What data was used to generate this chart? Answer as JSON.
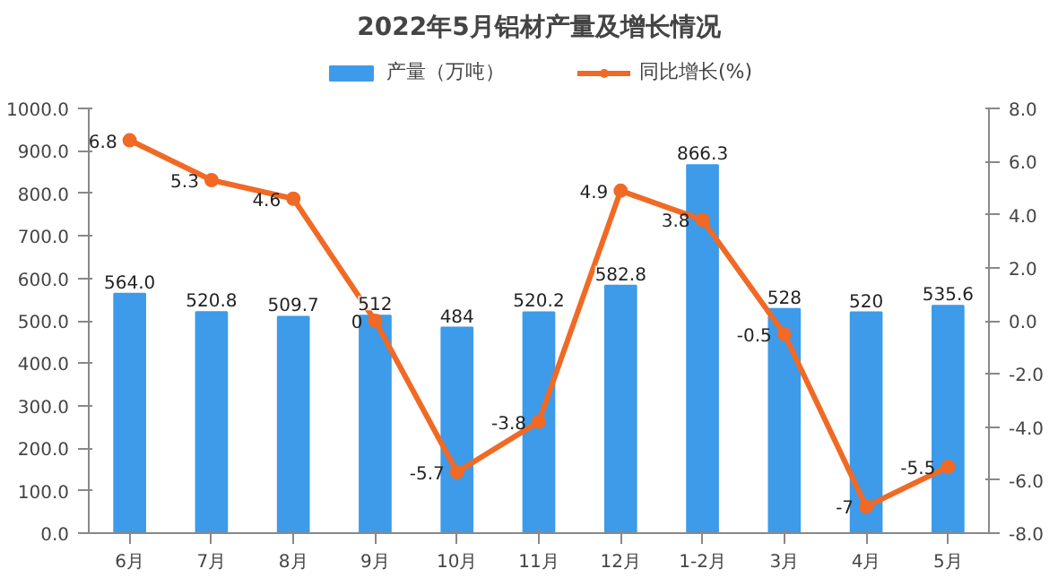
{
  "chart_data": {
    "type": "bar",
    "title": "2022年5月铝材产量及增长情况",
    "categories": [
      "6月",
      "7月",
      "8月",
      "9月",
      "10月",
      "11月",
      "12月",
      "1-2月",
      "3月",
      "4月",
      "5月"
    ],
    "series": [
      {
        "name": "产量（万吨）",
        "color": "#3d9be9",
        "values": [
          564.0,
          520.8,
          509.7,
          512,
          484,
          520.2,
          582.8,
          866.3,
          528,
          520,
          535.6
        ],
        "value_labels": [
          "564.0",
          "520.8",
          "509.7",
          "512",
          "484",
          "520.2",
          "582.8",
          "866.3",
          "528",
          "520",
          "535.6"
        ]
      },
      {
        "name": "同比增长(%)",
        "type": "line",
        "axis": "y2",
        "color": "#f06a25",
        "marker": "circle",
        "values": [
          6.8,
          5.3,
          4.6,
          0,
          -5.7,
          -3.8,
          4.9,
          3.8,
          -0.5,
          -7,
          -5.5
        ],
        "value_labels": [
          "6.8",
          "5.3",
          "4.6",
          "0",
          "-5.7",
          "-3.8",
          "4.9",
          "3.8",
          "-0.5",
          "-7",
          "-5.5"
        ]
      }
    ],
    "ylim": [
      0,
      1000
    ],
    "yticks": [
      {
        "value": 0,
        "label": "0.0"
      },
      {
        "value": 100,
        "label": "100.0"
      },
      {
        "value": 200,
        "label": "200.0"
      },
      {
        "value": 300,
        "label": "300.0"
      },
      {
        "value": 400,
        "label": "400.0"
      },
      {
        "value": 500,
        "label": "500.0"
      },
      {
        "value": 600,
        "label": "600.0"
      },
      {
        "value": 700,
        "label": "700.0"
      },
      {
        "value": 800,
        "label": "800.0"
      },
      {
        "value": 900,
        "label": "900.0"
      },
      {
        "value": 1000,
        "label": "1000.0"
      }
    ],
    "y2lim": [
      -8,
      8
    ],
    "y2ticks": [
      {
        "value": -8,
        "label": "-8.0"
      },
      {
        "value": -6,
        "label": "-6.0"
      },
      {
        "value": -4,
        "label": "-4.0"
      },
      {
        "value": -2,
        "label": "-2.0"
      },
      {
        "value": 0,
        "label": "0.0"
      },
      {
        "value": 2,
        "label": "2.0"
      },
      {
        "value": 4,
        "label": "4.0"
      },
      {
        "value": 6,
        "label": "6.0"
      },
      {
        "value": 8,
        "label": "8.0"
      }
    ],
    "legend": "top",
    "grid": false
  }
}
